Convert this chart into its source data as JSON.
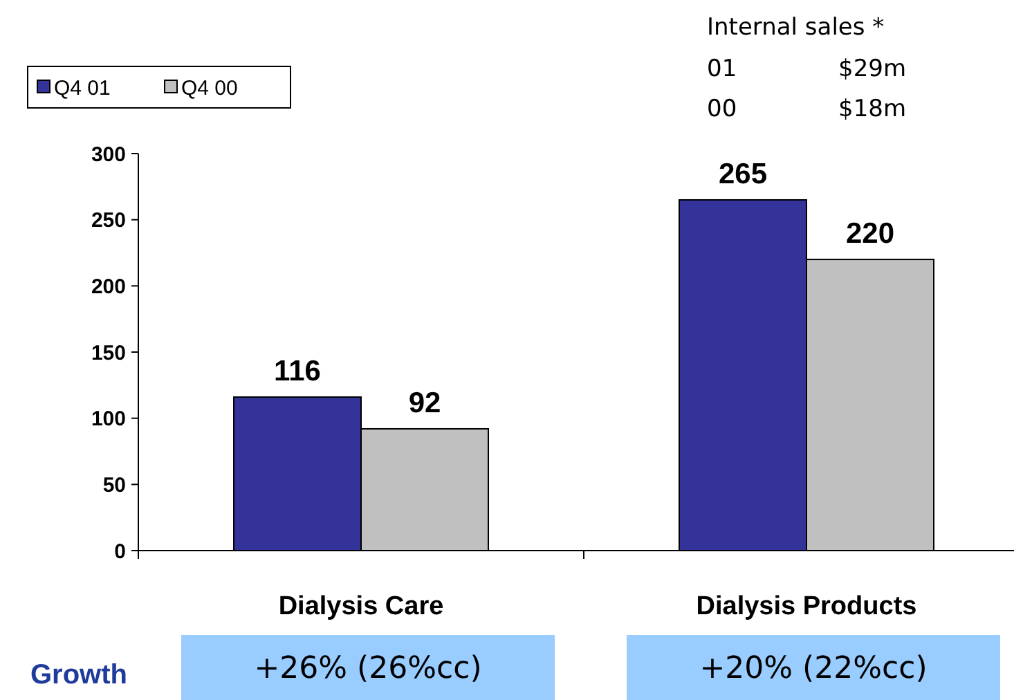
{
  "chart_data": {
    "type": "bar",
    "categories": [
      "Dialysis Care",
      "Dialysis Products"
    ],
    "series": [
      {
        "name": "Q4 01",
        "color": "#333399",
        "values": [
          116,
          265
        ]
      },
      {
        "name": "Q4 00",
        "color": "#c0c0c0",
        "values": [
          92,
          220
        ]
      }
    ],
    "ylim": [
      0,
      300
    ],
    "yticks": [
      0,
      50,
      100,
      150,
      200,
      250,
      300
    ],
    "data_labels": true,
    "legend": "top left",
    "grid": false,
    "annotations": [
      "Internal sales *",
      "01",
      "$29m",
      "00",
      "$18m",
      "Growth",
      "+26% (26%cc)",
      "+20% (22%cc)"
    ]
  }
}
